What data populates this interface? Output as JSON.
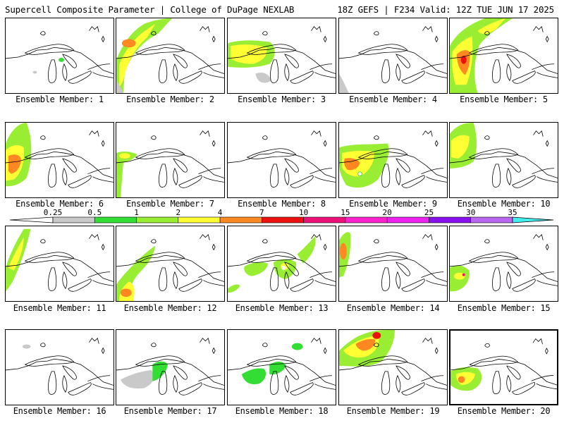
{
  "header": {
    "left_title": "Supercell Composite Parameter | College of DuPage NEXLAB",
    "right_title": "18Z GEFS | F234 Valid: 12Z TUE JUN 17 2025"
  },
  "colorbar": {
    "bins": [
      {
        "label": "0.25",
        "color": "#ffffff"
      },
      {
        "label": "0.5",
        "color": "#c9c9c9"
      },
      {
        "label": "1",
        "color": "#33dd33"
      },
      {
        "label": "2",
        "color": "#99ee33"
      },
      {
        "label": "4",
        "color": "#ffff33"
      },
      {
        "label": "7",
        "color": "#ff8822"
      },
      {
        "label": "10",
        "color": "#ee1111"
      },
      {
        "label": "15",
        "color": "#ee1177"
      },
      {
        "label": "20",
        "color": "#ff22cc"
      },
      {
        "label": "25",
        "color": "#ee22ee"
      },
      {
        "label": "30",
        "color": "#8811ee"
      },
      {
        "label": "35",
        "color": "#bb66ee"
      }
    ],
    "top_color": "#44eeee"
  },
  "members": [
    {
      "label": "Ensemble Member: 1"
    },
    {
      "label": "Ensemble Member: 2"
    },
    {
      "label": "Ensemble Member: 3"
    },
    {
      "label": "Ensemble Member: 4"
    },
    {
      "label": "Ensemble Member: 5"
    },
    {
      "label": "Ensemble Member: 6"
    },
    {
      "label": "Ensemble Member: 7"
    },
    {
      "label": "Ensemble Member: 8"
    },
    {
      "label": "Ensemble Member: 9"
    },
    {
      "label": "Ensemble Member: 10"
    },
    {
      "label": "Ensemble Member: 11"
    },
    {
      "label": "Ensemble Member: 12"
    },
    {
      "label": "Ensemble Member: 13"
    },
    {
      "label": "Ensemble Member: 14"
    },
    {
      "label": "Ensemble Member: 15"
    },
    {
      "label": "Ensemble Member: 16"
    },
    {
      "label": "Ensemble Member: 17"
    },
    {
      "label": "Ensemble Member: 18"
    },
    {
      "label": "Ensemble Member: 19"
    },
    {
      "label": "Ensemble Member: 20"
    }
  ]
}
